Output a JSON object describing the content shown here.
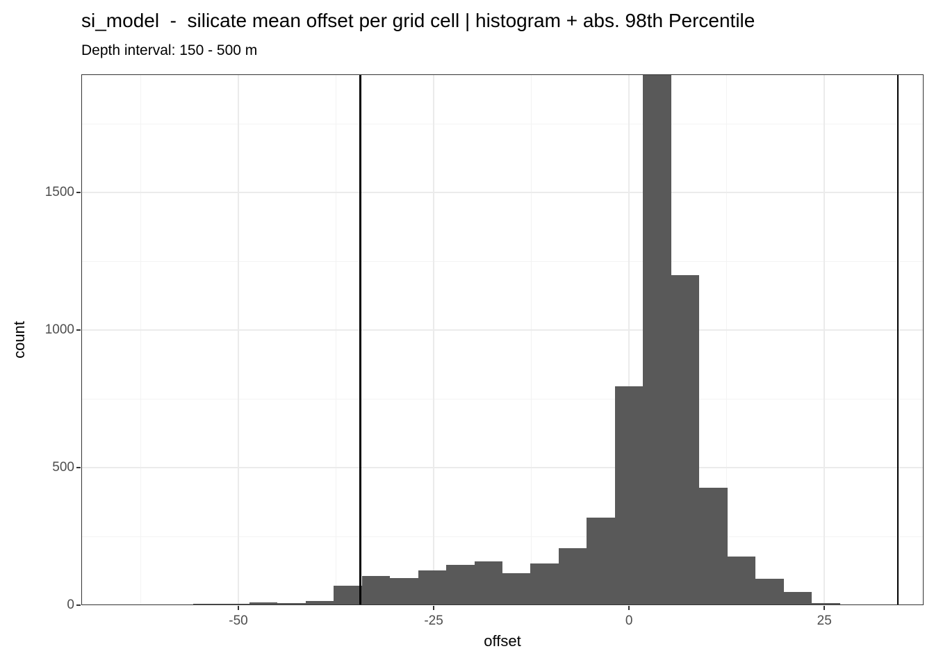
{
  "chart_data": {
    "type": "histogram",
    "title": "si_model  -  silicate mean offset per grid cell | histogram + abs. 98th Percentile",
    "subtitle": "Depth interval: 150 - 500 m",
    "xlabel": "offset",
    "ylabel": "count",
    "bar_color": "#595959",
    "bin_width": 3.6,
    "bin_centers": [
      -54,
      -50.4,
      -46.8,
      -43.2,
      -39.6,
      -36,
      -32.4,
      -28.8,
      -25.2,
      -21.6,
      -18,
      -14.4,
      -10.8,
      -7.2,
      -3.6,
      0,
      3.6,
      7.2,
      10.8,
      14.4,
      18,
      21.6,
      25.2
    ],
    "counts": [
      4,
      6,
      10,
      7,
      15,
      70,
      105,
      99,
      127,
      147,
      160,
      115,
      152,
      208,
      318,
      795,
      1930,
      1200,
      428,
      177,
      97,
      49,
      8
    ],
    "tallest_bin_clipped_at_top": true,
    "x_ticks": [
      "-50",
      "-25",
      "0",
      "25"
    ],
    "x_tick_values": [
      -50,
      -25,
      0,
      25
    ],
    "y_ticks": [
      "0",
      "500",
      "1000",
      "1500"
    ],
    "y_tick_values": [
      0,
      500,
      1000,
      1500
    ],
    "xlim": [
      -70.1,
      37.7
    ],
    "ylim": [
      0,
      1930
    ],
    "vlines": {
      "values": [
        -34.4,
        34.4
      ],
      "meaning": "abs. 98th Percentile",
      "color": "#000000"
    },
    "grid": {
      "major_x": [
        -50,
        -25,
        0,
        25
      ],
      "minor_x": [
        -62.5,
        -37.5,
        -12.5,
        12.5,
        37.5
      ],
      "major_y": [
        500,
        1000,
        1500
      ],
      "minor_y": [
        250,
        750,
        1250,
        1750
      ]
    },
    "legend_position": "none",
    "colors": {
      "bar": "#595959",
      "vline": "#000000",
      "panel_border": "#333333",
      "grid_major": "#ebebeb",
      "grid_minor": "#f3f3f3",
      "tick_label": "#4d4d4d",
      "text": "#000000"
    }
  }
}
